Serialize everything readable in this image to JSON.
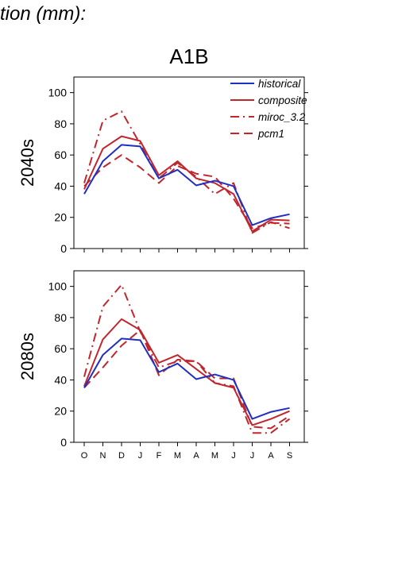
{
  "header": {
    "title": "tion (mm):"
  },
  "colors": {
    "historical": "#1f2fbf",
    "model": "#c0272d",
    "axis": "#000000"
  },
  "chart_data": [
    {
      "type": "line",
      "title": "A1B",
      "ylabel": "2040s",
      "categories": [
        "O",
        "N",
        "D",
        "J",
        "F",
        "M",
        "A",
        "M",
        "J",
        "J",
        "A",
        "S"
      ],
      "ylim": [
        0,
        110
      ],
      "yticks": [
        0,
        20,
        40,
        60,
        80,
        100
      ],
      "legend_position": "top-right",
      "series": [
        {
          "name": "historical",
          "style": "solid",
          "color": "#1f2fbf",
          "values": [
            35,
            56,
            66.5,
            65.5,
            45,
            50.5,
            40.5,
            43.5,
            40,
            15,
            19.5,
            22
          ]
        },
        {
          "name": "composite",
          "style": "solid",
          "color": "#c0272d",
          "values": [
            38,
            64,
            72,
            69,
            47,
            56,
            45,
            42,
            35,
            11,
            18.5,
            18
          ]
        },
        {
          "name": "miroc_3.2",
          "style": "dashdot",
          "color": "#c0272d",
          "values": [
            42,
            82,
            88,
            67,
            45,
            55,
            46,
            35,
            42,
            10,
            17,
            13
          ]
        },
        {
          "name": "pcm1",
          "style": "dashed",
          "color": "#c0272d",
          "values": [
            40,
            52,
            60,
            52,
            42,
            53,
            48,
            46,
            32,
            13,
            16.5,
            16
          ]
        }
      ]
    },
    {
      "type": "line",
      "ylabel": "2080s",
      "categories": [
        "O",
        "N",
        "D",
        "J",
        "F",
        "M",
        "A",
        "M",
        "J",
        "J",
        "A",
        "S"
      ],
      "ylim": [
        0,
        110
      ],
      "yticks": [
        0,
        20,
        40,
        60,
        80,
        100
      ],
      "series": [
        {
          "name": "historical",
          "style": "solid",
          "color": "#1f2fbf",
          "values": [
            35,
            56,
            66.5,
            65.5,
            45,
            50.5,
            40.5,
            43.5,
            40,
            15,
            19.5,
            22
          ]
        },
        {
          "name": "composite",
          "style": "solid",
          "color": "#c0272d",
          "values": [
            36,
            66,
            79,
            72,
            51,
            56,
            47,
            38,
            35,
            11,
            15,
            20
          ]
        },
        {
          "name": "miroc_3.2",
          "style": "dashdot",
          "color": "#c0272d",
          "values": [
            42,
            87,
            101,
            71,
            48,
            52,
            52,
            38,
            36,
            6,
            6,
            15
          ]
        },
        {
          "name": "pcm1",
          "style": "dashed",
          "color": "#c0272d",
          "values": [
            35,
            48,
            62,
            72,
            43,
            53,
            52,
            41,
            41,
            10,
            9,
            17
          ]
        }
      ]
    }
  ]
}
